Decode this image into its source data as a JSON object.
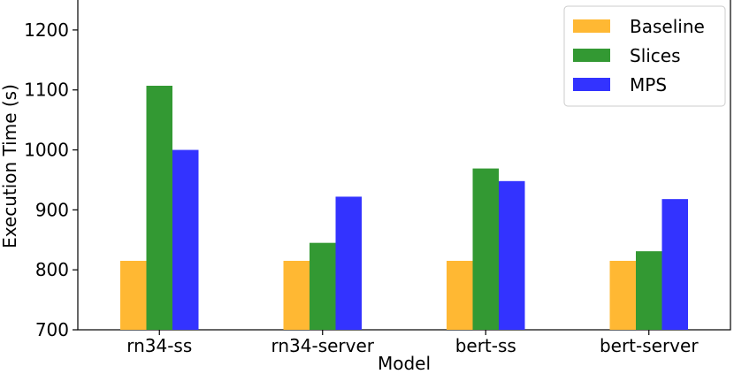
{
  "chart_data": {
    "type": "bar",
    "xlabel": "Model",
    "ylabel": "Execution Time (s)",
    "categories": [
      "rn34-ss",
      "rn34-server",
      "bert-ss",
      "bert-server"
    ],
    "series": [
      {
        "name": "Baseline",
        "color": "#ffb833",
        "values": [
          815,
          815,
          815,
          815
        ]
      },
      {
        "name": "Slices",
        "color": "#339933",
        "values": [
          1107,
          845,
          969,
          831
        ]
      },
      {
        "name": "MPS",
        "color": "#3333ff",
        "values": [
          1000,
          922,
          948,
          918
        ]
      }
    ],
    "ylim": [
      700,
      1250
    ],
    "yticks": [
      700,
      800,
      900,
      1000,
      1100,
      1200
    ],
    "grid": false,
    "legend_position": "top-right"
  }
}
